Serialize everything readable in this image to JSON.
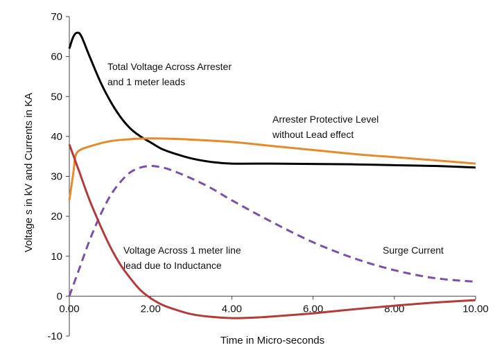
{
  "chart_data": {
    "type": "line",
    "title": "",
    "xlabel": "Time in Micro-seconds",
    "ylabel": "Voltage s in kV and Currents in KA",
    "xlim": [
      0,
      10
    ],
    "ylim": [
      -10,
      70
    ],
    "x_ticks": [
      0,
      2,
      4,
      6,
      8,
      10
    ],
    "x_tick_labels": [
      "0.00",
      "2.00",
      "4.00",
      "6.00",
      "8.00",
      "10.00"
    ],
    "y_ticks": [
      -10,
      0,
      10,
      20,
      30,
      40,
      50,
      60,
      70
    ],
    "y_tick_labels": [
      "-10",
      "0",
      "10",
      "20",
      "30",
      "40",
      "50",
      "60",
      "70"
    ],
    "grid": false,
    "legend": "none",
    "series": [
      {
        "name": "Total Voltage Across Arrester and 1 meter leads",
        "color": "#000000",
        "style": "solid",
        "x": [
          0,
          0.1,
          0.2,
          0.3,
          0.5,
          0.75,
          1.0,
          1.25,
          1.5,
          1.75,
          2.0,
          2.25,
          2.5,
          3.0,
          3.5,
          4.0,
          5.0,
          6.0,
          7.0,
          8.0,
          9.0,
          10.0
        ],
        "y": [
          62,
          65,
          66,
          65,
          60,
          54,
          49,
          45,
          42,
          40,
          38.5,
          37,
          36,
          34.5,
          33.6,
          33.2,
          33.2,
          33.1,
          33.0,
          32.8,
          32.6,
          32.2
        ]
      },
      {
        "name": "Arrester Protective Level without Lead effect",
        "color": "#e8892a",
        "style": "solid",
        "x": [
          0,
          0.1,
          0.15,
          0.25,
          0.5,
          1.0,
          1.5,
          2.0,
          2.5,
          3.0,
          4.0,
          5.0,
          6.0,
          7.0,
          8.0,
          9.0,
          10.0
        ],
        "y": [
          24,
          31,
          35,
          36.5,
          37.5,
          38.8,
          39.3,
          39.5,
          39.4,
          39.2,
          38.6,
          37.6,
          36.6,
          35.6,
          34.8,
          34.0,
          33.2
        ]
      },
      {
        "name": "Surge Current",
        "color": "#7a4fb0",
        "style": "dashed",
        "x": [
          0,
          0.25,
          0.5,
          0.75,
          1.0,
          1.25,
          1.5,
          1.75,
          2.0,
          2.25,
          2.5,
          3.0,
          3.5,
          4.0,
          5.0,
          6.0,
          7.0,
          8.0,
          9.0,
          10.0
        ],
        "y": [
          0,
          7,
          14,
          20,
          25,
          28.5,
          31,
          32.2,
          32.6,
          32.3,
          31.6,
          29.5,
          27,
          24,
          18.5,
          13.5,
          9.5,
          6.5,
          4.5,
          3.6
        ]
      },
      {
        "name": "Voltage Across 1 meter line lead due to Inductance",
        "color": "#b73a3a",
        "style": "solid",
        "x": [
          0,
          0.25,
          0.5,
          0.75,
          1.0,
          1.25,
          1.5,
          1.75,
          2.0,
          2.25,
          2.5,
          3.0,
          3.5,
          4.0,
          4.5,
          5.0,
          6.0,
          7.0,
          8.0,
          9.0,
          10.0
        ],
        "y": [
          38,
          31,
          24,
          18,
          12.5,
          8,
          4.5,
          1.5,
          -0.5,
          -2,
          -3,
          -4.5,
          -5.2,
          -5.5,
          -5.4,
          -5.1,
          -4.3,
          -3.3,
          -2.4,
          -1.6,
          -1.0
        ]
      }
    ],
    "annotations": [
      {
        "id": "total_voltage",
        "lines": [
          "Total Voltage Across Arrester",
          "and 1 meter leads"
        ]
      },
      {
        "id": "protective_level",
        "lines": [
          "Arrester Protective Level",
          "without Lead effect"
        ]
      },
      {
        "id": "surge_current",
        "lines": [
          "Surge Current"
        ]
      },
      {
        "id": "lead_voltage",
        "lines": [
          "Voltage Across 1 meter line",
          "lead due to Inductance"
        ]
      }
    ]
  }
}
